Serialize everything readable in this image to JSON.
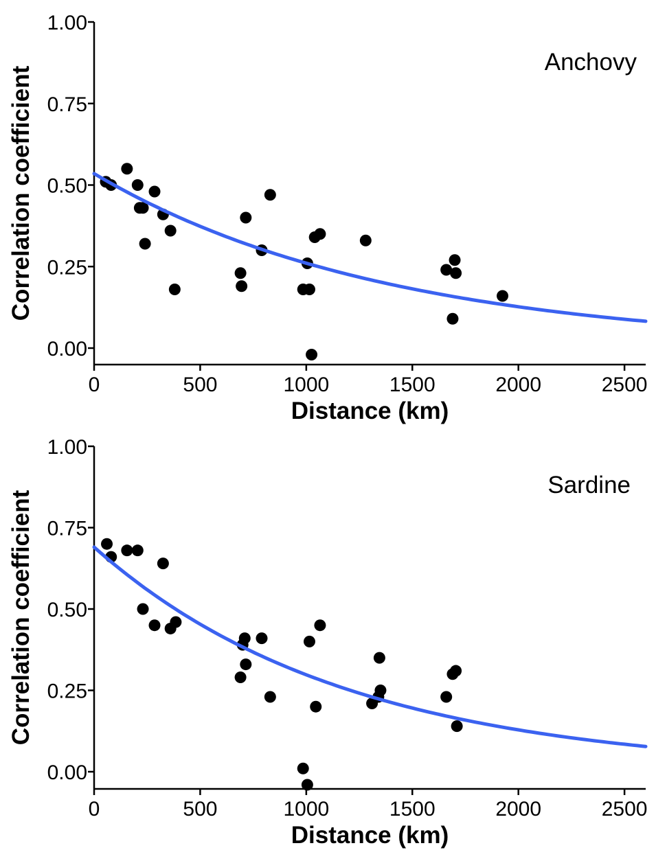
{
  "colors": {
    "fit_line": "#3b62f0",
    "points": "#000000",
    "background": "#ffffff"
  },
  "chart_data": [
    {
      "type": "scatter",
      "title": "",
      "panel_label": "Anchovy",
      "xlabel": "Distance (km)",
      "ylabel": "Correlation coefficient",
      "xlim": [
        0,
        2600
      ],
      "ylim": [
        -0.05,
        1.0
      ],
      "x_ticks": [
        "0",
        "500",
        "1000",
        "1500",
        "2000",
        "2500"
      ],
      "y_ticks": [
        "0.00",
        "0.25",
        "0.50",
        "0.75",
        "1.00"
      ],
      "grid": false,
      "points": [
        {
          "x": 55,
          "y": 0.51
        },
        {
          "x": 80,
          "y": 0.5
        },
        {
          "x": 155,
          "y": 0.55
        },
        {
          "x": 205,
          "y": 0.5
        },
        {
          "x": 215,
          "y": 0.43
        },
        {
          "x": 230,
          "y": 0.43
        },
        {
          "x": 240,
          "y": 0.32
        },
        {
          "x": 285,
          "y": 0.48
        },
        {
          "x": 325,
          "y": 0.41
        },
        {
          "x": 360,
          "y": 0.36
        },
        {
          "x": 380,
          "y": 0.18
        },
        {
          "x": 690,
          "y": 0.23
        },
        {
          "x": 695,
          "y": 0.19
        },
        {
          "x": 715,
          "y": 0.4
        },
        {
          "x": 790,
          "y": 0.3
        },
        {
          "x": 830,
          "y": 0.47
        },
        {
          "x": 985,
          "y": 0.18
        },
        {
          "x": 1005,
          "y": 0.26
        },
        {
          "x": 1015,
          "y": 0.18
        },
        {
          "x": 1025,
          "y": -0.02
        },
        {
          "x": 1040,
          "y": 0.34
        },
        {
          "x": 1065,
          "y": 0.35
        },
        {
          "x": 1280,
          "y": 0.33
        },
        {
          "x": 1660,
          "y": 0.24
        },
        {
          "x": 1690,
          "y": 0.09
        },
        {
          "x": 1700,
          "y": 0.27
        },
        {
          "x": 1705,
          "y": 0.23
        },
        {
          "x": 1925,
          "y": 0.16
        }
      ],
      "fit": {
        "type": "exponential",
        "a": 0.535,
        "b": 0.00072
      }
    },
    {
      "type": "scatter",
      "title": "",
      "panel_label": "Sardine",
      "xlabel": "Distance (km)",
      "ylabel": "Correlation coefficient",
      "xlim": [
        0,
        2600
      ],
      "ylim": [
        -0.05,
        1.0
      ],
      "x_ticks": [
        "0",
        "500",
        "1000",
        "1500",
        "2000",
        "2500"
      ],
      "y_ticks": [
        "0.00",
        "0.25",
        "0.50",
        "0.75",
        "1.00"
      ],
      "grid": false,
      "points": [
        {
          "x": 60,
          "y": 0.7
        },
        {
          "x": 80,
          "y": 0.66
        },
        {
          "x": 155,
          "y": 0.68
        },
        {
          "x": 205,
          "y": 0.68
        },
        {
          "x": 230,
          "y": 0.5
        },
        {
          "x": 285,
          "y": 0.45
        },
        {
          "x": 325,
          "y": 0.64
        },
        {
          "x": 360,
          "y": 0.44
        },
        {
          "x": 385,
          "y": 0.46
        },
        {
          "x": 690,
          "y": 0.29
        },
        {
          "x": 700,
          "y": 0.39
        },
        {
          "x": 710,
          "y": 0.41
        },
        {
          "x": 715,
          "y": 0.33
        },
        {
          "x": 790,
          "y": 0.41
        },
        {
          "x": 830,
          "y": 0.23
        },
        {
          "x": 985,
          "y": 0.01
        },
        {
          "x": 1005,
          "y": -0.04
        },
        {
          "x": 1015,
          "y": 0.4
        },
        {
          "x": 1045,
          "y": 0.2
        },
        {
          "x": 1065,
          "y": 0.45
        },
        {
          "x": 1310,
          "y": 0.21
        },
        {
          "x": 1340,
          "y": 0.23
        },
        {
          "x": 1345,
          "y": 0.35
        },
        {
          "x": 1350,
          "y": 0.25
        },
        {
          "x": 1660,
          "y": 0.23
        },
        {
          "x": 1690,
          "y": 0.3
        },
        {
          "x": 1705,
          "y": 0.31
        },
        {
          "x": 1710,
          "y": 0.14
        }
      ],
      "fit": {
        "type": "exponential",
        "a": 0.69,
        "b": 0.00084
      }
    }
  ]
}
